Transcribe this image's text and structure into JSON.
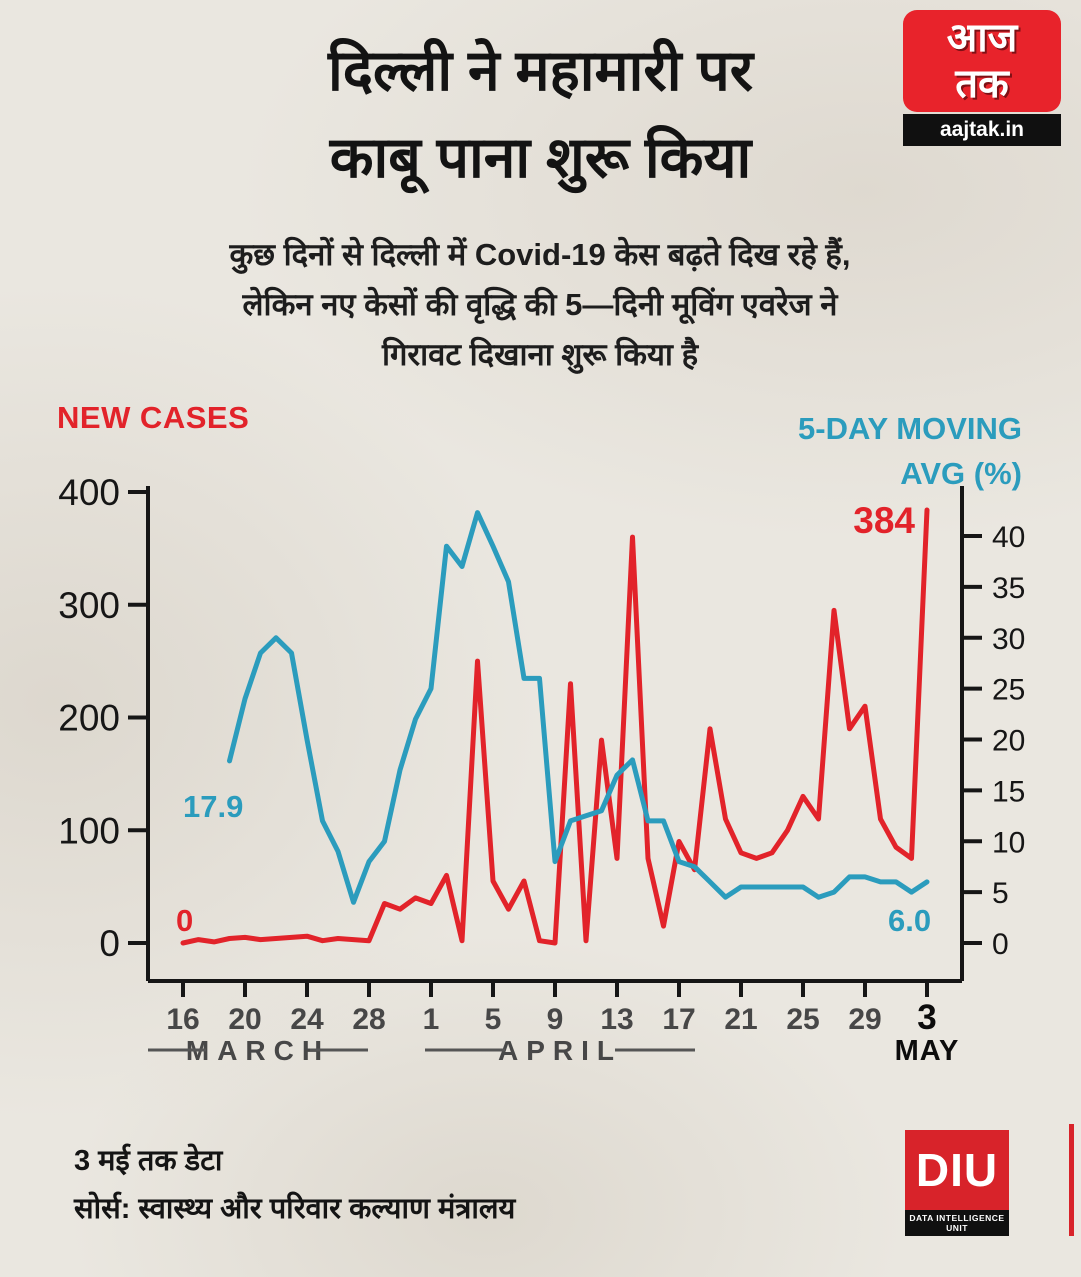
{
  "logo": {
    "brand_line1": "आज",
    "brand_line2": "तक",
    "site": "aajtak.in"
  },
  "header": {
    "title_line1": "दिल्ली ने महामारी पर",
    "title_line2": "काबू पाना शुरू किया",
    "subtitle_line1": "कुछ दिनों से दिल्ली में Covid-19 केस बढ़ते दिख रहे हैं,",
    "subtitle_line2": "लेकिन नए केसों की वृद्धि की 5—दिनी मूविंग एवरेज ने",
    "subtitle_line3": "गिरावट दिखाना शुरू किया है"
  },
  "chart_header": {
    "left": "NEW CASES",
    "right_line1": "5-DAY MOVING",
    "right_line2": "AVG (%)"
  },
  "chart_data": {
    "type": "line",
    "title": "Delhi Covid-19: new cases vs 5-day moving average of growth",
    "grid": false,
    "axis_color": "#161616",
    "dates": [
      "16 Mar",
      "17 Mar",
      "18 Mar",
      "19 Mar",
      "20 Mar",
      "21 Mar",
      "22 Mar",
      "23 Mar",
      "24 Mar",
      "25 Mar",
      "26 Mar",
      "27 Mar",
      "28 Mar",
      "29 Mar",
      "30 Mar",
      "31 Mar",
      "1 Apr",
      "2 Apr",
      "3 Apr",
      "4 Apr",
      "5 Apr",
      "6 Apr",
      "7 Apr",
      "8 Apr",
      "9 Apr",
      "10 Apr",
      "11 Apr",
      "12 Apr",
      "13 Apr",
      "14 Apr",
      "15 Apr",
      "16 Apr",
      "17 Apr",
      "18 Apr",
      "19 Apr",
      "20 Apr",
      "21 Apr",
      "22 Apr",
      "23 Apr",
      "24 Apr",
      "25 Apr",
      "26 Apr",
      "27 Apr",
      "28 Apr",
      "29 Apr",
      "30 Apr",
      "1 May",
      "2 May",
      "3 May"
    ],
    "series": [
      {
        "name": "NEW CASES",
        "axis": "left",
        "color": "#e2232a",
        "start_index": 0,
        "values": [
          0,
          3,
          1,
          4,
          5,
          3,
          4,
          5,
          6,
          2,
          4,
          3,
          2,
          35,
          30,
          40,
          35,
          60,
          2,
          250,
          55,
          30,
          55,
          2,
          0,
          230,
          2,
          180,
          75,
          360,
          75,
          15,
          90,
          65,
          190,
          110,
          80,
          75,
          80,
          100,
          130,
          110,
          295,
          190,
          210,
          110,
          85,
          75,
          384
        ]
      },
      {
        "name": "5-DAY MOVING AVG (%)",
        "axis": "right",
        "color": "#2b9cbd",
        "start_index": 3,
        "values": [
          17.9,
          24,
          28.5,
          30,
          28.5,
          20,
          12,
          9,
          4,
          8,
          10,
          17,
          22,
          25,
          39,
          37,
          42.3,
          39,
          35.5,
          26,
          26,
          8,
          12,
          12.5,
          13,
          16.5,
          18,
          12,
          12,
          8,
          7.5,
          6,
          4.5,
          5.5,
          5.5,
          5.5,
          5.5,
          5.5,
          4.5,
          5,
          6.5,
          6.5,
          6,
          6,
          5,
          6
        ]
      }
    ],
    "left_axis": {
      "title": "NEW CASES",
      "ticks": [
        400,
        300,
        200,
        100,
        0
      ],
      "min": 0,
      "max": 400
    },
    "right_axis": {
      "title": "5-DAY MOVING AVG (%)",
      "ticks": [
        40,
        35,
        30,
        25,
        20,
        15,
        10,
        5,
        0
      ],
      "min": 0,
      "max": 42.5
    },
    "x_ticks": [
      {
        "label": "16",
        "day_index": 0
      },
      {
        "label": "20",
        "day_index": 4
      },
      {
        "label": "24",
        "day_index": 8
      },
      {
        "label": "28",
        "day_index": 12
      },
      {
        "label": "1",
        "day_index": 16
      },
      {
        "label": "5",
        "day_index": 20
      },
      {
        "label": "9",
        "day_index": 24
      },
      {
        "label": "13",
        "day_index": 28
      },
      {
        "label": "17",
        "day_index": 32
      },
      {
        "label": "21",
        "day_index": 36
      },
      {
        "label": "25",
        "day_index": 40
      },
      {
        "label": "29",
        "day_index": 44
      },
      {
        "label": "3",
        "day_index": 48,
        "emphasis": true
      }
    ],
    "month_labels": [
      {
        "label": "MARCH"
      },
      {
        "label": "APRIL"
      },
      {
        "label": "MAY"
      }
    ],
    "annotations": [
      {
        "text": "0",
        "series": "NEW CASES",
        "position": "start"
      },
      {
        "text": "384",
        "series": "NEW CASES",
        "position": "end"
      },
      {
        "text": "17.9",
        "series": "5-DAY MOVING AVG (%)",
        "position": "start"
      },
      {
        "text": "6.0",
        "series": "5-DAY MOVING AVG (%)",
        "position": "end"
      }
    ]
  },
  "footer": {
    "note": "3 मई तक डेटा",
    "source": "सोर्स: स्वास्थ्य और परिवार कल्याण मंत्रालय",
    "diu_name": "DIU",
    "diu_caption": "DATA INTELLIGENCE UNIT"
  }
}
